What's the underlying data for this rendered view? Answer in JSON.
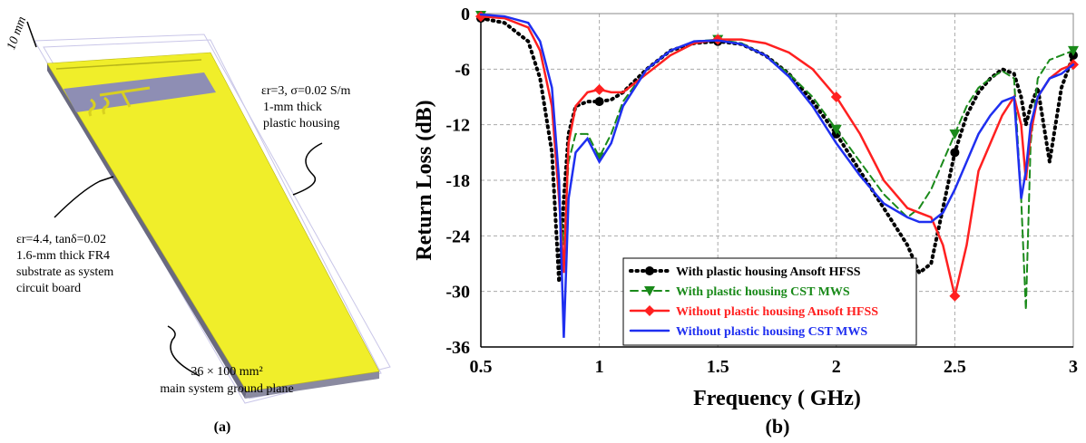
{
  "panel_a": {
    "dimension": "10 mm",
    "housing_lines": [
      "εr=3, σ=0.02 S/m",
      "1-mm thick",
      "plastic housing"
    ],
    "substrate_lines": [
      "εr=4.4, tanδ=0.02",
      "1.6-mm thick FR4",
      "substrate as system",
      "circuit board"
    ],
    "ground_lines": [
      "36 × 100 mm²",
      "main system ground plane"
    ],
    "label": "(a)"
  },
  "panel_b_label": "(b)",
  "chart_data": {
    "type": "line",
    "xlabel": "Frequency ( GHz)",
    "ylabel": "Return Loss (dB)",
    "xlim": [
      0.5,
      3
    ],
    "ylim": [
      -36,
      0
    ],
    "xticks": [
      0.5,
      1,
      1.5,
      2,
      2.5,
      3
    ],
    "yticks": [
      0,
      -6,
      -12,
      -18,
      -24,
      -30,
      -36
    ],
    "grid": true,
    "legend": "lower center",
    "x": [
      0.5,
      0.6,
      0.7,
      0.75,
      0.8,
      0.83,
      0.85,
      0.87,
      0.9,
      0.95,
      1.0,
      1.05,
      1.1,
      1.2,
      1.3,
      1.4,
      1.5,
      1.6,
      1.7,
      1.8,
      1.9,
      2.0,
      2.1,
      2.2,
      2.3,
      2.35,
      2.4,
      2.45,
      2.5,
      2.55,
      2.6,
      2.65,
      2.7,
      2.75,
      2.78,
      2.8,
      2.82,
      2.85,
      2.9,
      2.95,
      3.0
    ],
    "series": [
      {
        "name": "With plastic housing Ansoft HFSS",
        "color": "#000000",
        "dash": "dotted",
        "marker": "circle",
        "values": [
          -0.5,
          -1,
          -3,
          -7,
          -15,
          -29,
          -20,
          -13,
          -10,
          -9.5,
          -9.5,
          -9.3,
          -8.5,
          -6,
          -4,
          -3.2,
          -3,
          -3.3,
          -4.5,
          -6.5,
          -9.5,
          -13,
          -17,
          -21,
          -25,
          -28,
          -27,
          -21,
          -15,
          -11,
          -8.5,
          -7,
          -6,
          -6.5,
          -9,
          -12,
          -10,
          -8,
          -16,
          -8,
          -4.5
        ]
      },
      {
        "name": "With plastic housing CST MWS",
        "color": "#1a8a1a",
        "dash": "dashed",
        "marker": "triangle",
        "values": [
          -0.2,
          -0.5,
          -1.5,
          -4,
          -10,
          -20,
          -25,
          -16,
          -13,
          -13,
          -15.5,
          -13,
          -9.5,
          -6,
          -4,
          -3,
          -2.8,
          -3.2,
          -4.5,
          -6.5,
          -9,
          -12.5,
          -16,
          -19.5,
          -22,
          -21,
          -19,
          -16,
          -13,
          -10,
          -8,
          -7,
          -6.2,
          -7,
          -20,
          -32,
          -14,
          -7,
          -5,
          -4.5,
          -4
        ]
      },
      {
        "name": "Without plastic housing Ansoft HFSS",
        "color": "#ff2020",
        "dash": "solid",
        "marker": "diamond",
        "values": [
          -0.3,
          -0.5,
          -1.5,
          -4,
          -10,
          -20,
          -28,
          -14,
          -10,
          -8.5,
          -8.2,
          -8.5,
          -8.5,
          -6.5,
          -4.5,
          -3.2,
          -2.8,
          -2.8,
          -3.2,
          -4.2,
          -6,
          -9,
          -13,
          -18,
          -21,
          -21.5,
          -22,
          -25,
          -30.5,
          -25,
          -17,
          -14,
          -11,
          -9,
          -12,
          -18,
          -13,
          -9,
          -7,
          -6,
          -5.5
        ]
      },
      {
        "name": "Without plastic housing CST MWS",
        "color": "#1f2ff0",
        "dash": "solid",
        "marker": "none",
        "values": [
          -0.1,
          -0.3,
          -1,
          -3,
          -8,
          -18,
          -35,
          -20,
          -15,
          -13.5,
          -16,
          -14,
          -10,
          -6,
          -4,
          -3,
          -2.9,
          -3.3,
          -4.5,
          -6.8,
          -10,
          -14,
          -17.5,
          -20.5,
          -22,
          -22.5,
          -22.5,
          -21.5,
          -19,
          -16,
          -13,
          -11,
          -9.5,
          -9,
          -20,
          -17,
          -12,
          -9,
          -7,
          -6.5,
          -5.5
        ]
      }
    ]
  }
}
